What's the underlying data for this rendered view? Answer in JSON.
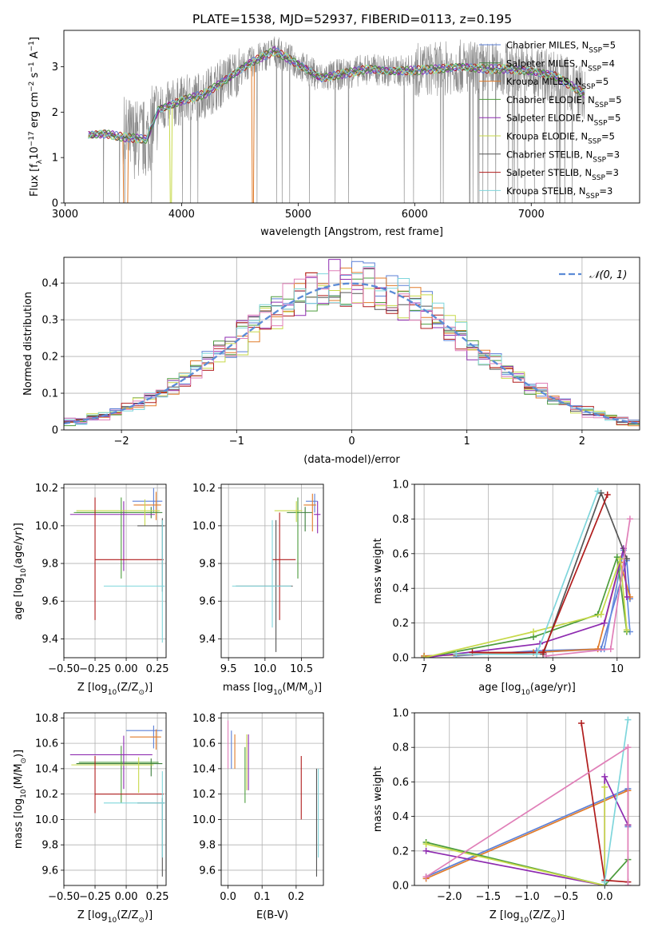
{
  "figure_title": "PLATE=1538, MJD=52937, FIBERID=0113, z=0.195",
  "legend_entries": [
    {
      "label": "Chabrier MILES, N",
      "sub": "SSP",
      "suffix": "=5",
      "color": "#5b7fd6"
    },
    {
      "label": "Salpeter MILES, N",
      "sub": "SSP",
      "suffix": "=4",
      "color": "#3a7d3a"
    },
    {
      "label": "Kroupa MILES, N",
      "sub": "SSP",
      "suffix": "=5",
      "color": "#e07b2a"
    },
    {
      "label": "Chabrier ELODIE, N",
      "sub": "SSP",
      "suffix": "=5",
      "color": "#4c9c3c"
    },
    {
      "label": "Salpeter ELODIE, N",
      "sub": "SSP",
      "suffix": "=5",
      "color": "#8e2bb0"
    },
    {
      "label": "Kroupa ELODIE, N",
      "sub": "SSP",
      "suffix": "=5",
      "color": "#c7d94a"
    },
    {
      "label": "Chabrier STELIB, N",
      "sub": "SSP",
      "suffix": "=3",
      "color": "#555555"
    },
    {
      "label": "Salpeter STELIB, N",
      "sub": "SSP",
      "suffix": "=3",
      "color": "#b01c1c"
    },
    {
      "label": "Kroupa STELIB, N",
      "sub": "SSP",
      "suffix": "=3",
      "color": "#7fd6dc"
    }
  ],
  "extra_colors": {
    "pink": "#e07fb8",
    "gray": "#7f7f7f",
    "normal": "#5b8bd6"
  },
  "chart_data": [
    {
      "id": "spectrum",
      "type": "line",
      "xlabel": "wavelength [Angstrom, rest frame]",
      "ylabel_main": "Flux [f",
      "ylabel_sub": "λ",
      "ylabel_rest": "10",
      "ylabel_exp1": "−17",
      "ylabel_mid": " erg cm",
      "ylabel_exp2": "−2",
      "ylabel_mid2": " s",
      "ylabel_exp3": "−1",
      "ylabel_end": " A",
      "ylabel_exp4": "−1",
      "ylabel_close": "]",
      "xlim": [
        2990,
        7930
      ],
      "ylim": [
        0,
        3.8
      ],
      "xticks": [
        3000,
        4000,
        5000,
        6000,
        7000
      ],
      "yticks": [
        0,
        1,
        2,
        3
      ],
      "x_range": [
        3200,
        7460
      ],
      "data_anchors": {
        "x": [
          3200,
          3350,
          3500,
          3700,
          3800,
          3900,
          4000,
          4200,
          4400,
          4600,
          4800,
          5000,
          5200,
          5400,
          5600,
          5800,
          6000,
          6200,
          6400,
          6600,
          6800,
          7000,
          7200,
          7460
        ],
        "y": [
          1.5,
          1.52,
          1.45,
          1.4,
          2.05,
          2.15,
          2.25,
          2.4,
          2.75,
          3.1,
          3.35,
          3.05,
          2.75,
          2.85,
          2.95,
          2.9,
          2.92,
          2.95,
          3.0,
          2.95,
          2.95,
          2.9,
          2.8,
          2.4
        ]
      }
    },
    {
      "id": "residuals",
      "type": "histogram",
      "xlabel": "(data-model)/error",
      "ylabel": "Normed distribution",
      "xlim": [
        -2.5,
        2.5
      ],
      "ylim": [
        0,
        0.47
      ],
      "xticks": [
        -2,
        -1,
        0,
        1,
        2
      ],
      "yticks": [
        0,
        0.1,
        0.2,
        0.3,
        0.4
      ],
      "bin_width": 0.1,
      "legend_label": "𝒩(0, 1)",
      "approx_shape": "standard normal, peak ≈ 0.40 at 0"
    },
    {
      "id": "age_vs_Z",
      "type": "errorbar",
      "xlabel_main": "Z [log",
      "xlabel_sub": "10",
      "xlabel_rest": "(Z/Z",
      "xlabel_sun": "⊙",
      "xlabel_close": ")]",
      "ylabel_main": "age  [log",
      "ylabel_sub": "10",
      "ylabel_rest": "(age/yr)]",
      "xlim": [
        -0.5,
        0.32
      ],
      "ylim": [
        9.3,
        10.22
      ],
      "xticks": [
        -0.5,
        -0.25,
        0.0,
        0.25
      ],
      "xtick_labels": [
        "−0.50",
        "−0.25",
        "0.00",
        "0.25"
      ],
      "yticks": [
        9.4,
        9.6,
        9.8,
        10.0,
        10.2
      ],
      "ytick_labels": [
        "9.4",
        "9.6",
        "9.8",
        "10.0",
        "10.2"
      ],
      "points": [
        {
          "x": 0.22,
          "xerr": [
            0.17,
            0.07
          ],
          "y": 10.13,
          "yerr": [
            0.06,
            0.07
          ],
          "c": 0
        },
        {
          "x": 0.2,
          "xerr": [
            0.6,
            0.09
          ],
          "y": 10.07,
          "yerr": [
            0.03,
            0.03
          ],
          "c": 1
        },
        {
          "x": 0.24,
          "xerr": [
            0.18,
            0.04
          ],
          "y": 10.11,
          "yerr": [
            0.08,
            0.07
          ],
          "c": 2
        },
        {
          "x": -0.04,
          "xerr": [
            0.38,
            0.3
          ],
          "y": 10.07,
          "yerr": [
            0.35,
            0.08
          ],
          "c": 3
        },
        {
          "x": -0.02,
          "xerr": [
            0.43,
            0.25
          ],
          "y": 10.06,
          "yerr": [
            0.3,
            0.07
          ],
          "c": 4
        },
        {
          "x": 0.15,
          "xerr": [
            0.55,
            0.12
          ],
          "y": 10.08,
          "yerr": [
            0.08,
            0.06
          ],
          "c": 5
        },
        {
          "x": 0.29,
          "xerr": [
            0.2,
            0.02
          ],
          "y": 10.0,
          "yerr": [
            0.35,
            0.04
          ],
          "c": 6
        },
        {
          "x": -0.25,
          "xerr": [
            0.0,
            0.55
          ],
          "y": 9.82,
          "yerr": [
            0.32,
            0.33
          ],
          "c": 7
        },
        {
          "x": 0.29,
          "xerr": [
            0.47,
            0.02
          ],
          "y": 9.68,
          "yerr": [
            0.3,
            0.35
          ],
          "c": 8
        }
      ]
    },
    {
      "id": "age_vs_mass",
      "type": "errorbar",
      "xlabel_main": "mass [log",
      "xlabel_sub": "10",
      "xlabel_rest": "(M/M",
      "xlabel_sun": "⊙",
      "xlabel_close": ")]",
      "xlim": [
        9.4,
        10.8
      ],
      "ylim": [
        9.3,
        10.22
      ],
      "xticks": [
        9.5,
        10.0,
        10.5
      ],
      "xtick_labels": [
        "9.5",
        "10.0",
        "10.5"
      ],
      "yticks": [
        9.4,
        9.6,
        9.8,
        10.0,
        10.2
      ],
      "ytick_labels": [
        "9.4",
        "9.6",
        "9.8",
        "10.0",
        "10.2"
      ],
      "points": [
        {
          "x": 10.68,
          "xerr": [
            0.12,
            0.04
          ],
          "y": 10.13,
          "yerr": [
            0.06,
            0.04
          ],
          "c": 0
        },
        {
          "x": 10.55,
          "xerr": [
            0.25,
            0.1
          ],
          "y": 10.07,
          "yerr": [
            0.1,
            0.03
          ],
          "c": 1
        },
        {
          "x": 10.65,
          "xerr": [
            0.12,
            0.05
          ],
          "y": 10.11,
          "yerr": [
            0.14,
            0.06
          ],
          "c": 2
        },
        {
          "x": 10.45,
          "xerr": [
            0.05,
            0.03
          ],
          "y": 10.07,
          "yerr": [
            0.35,
            0.08
          ],
          "c": 3
        },
        {
          "x": 10.72,
          "xerr": [
            0.05,
            0.04
          ],
          "y": 10.06,
          "yerr": [
            0.1,
            0.07
          ],
          "c": 4
        },
        {
          "x": 10.43,
          "xerr": [
            0.3,
            0.08
          ],
          "y": 10.08,
          "yerr": [
            0.06,
            0.05
          ],
          "c": 5
        },
        {
          "x": 10.15,
          "xerr": [
            0.55,
            0.23
          ],
          "y": 9.68,
          "yerr": [
            0.35,
            0.35
          ],
          "c": 6
        },
        {
          "x": 10.2,
          "xerr": [
            0.1,
            0.22
          ],
          "y": 9.82,
          "yerr": [
            0.32,
            0.25
          ],
          "c": 7
        },
        {
          "x": 10.1,
          "xerr": [
            0.55,
            0.26
          ],
          "y": 9.68,
          "yerr": [
            0.22,
            0.35
          ],
          "c": 8
        }
      ]
    },
    {
      "id": "weight_vs_age",
      "type": "line",
      "xlabel_main": "age  [log",
      "xlabel_sub": "10",
      "xlabel_rest": "(age/yr)]",
      "ylabel": "mass weight",
      "xlim": [
        6.85,
        10.35
      ],
      "ylim": [
        0,
        1.0
      ],
      "xticks": [
        7,
        8,
        9,
        10
      ],
      "yticks": [
        0.0,
        0.2,
        0.4,
        0.6,
        0.8,
        1.0
      ],
      "ytick_labels": [
        "0.0",
        "0.2",
        "0.4",
        "0.6",
        "0.8",
        "1.0"
      ],
      "series": [
        {
          "c": 0,
          "x": [
            7.5,
            8.75,
            9.75,
            10.15,
            10.2
          ],
          "y": [
            0.01,
            0.04,
            0.05,
            0.56,
            0.34
          ]
        },
        {
          "c": 9,
          "x": [
            7.0,
            8.7,
            9.8,
            10.1,
            10.2
          ],
          "y": [
            0.01,
            0.03,
            0.05,
            0.62,
            0.15
          ]
        },
        {
          "c": 2,
          "x": [
            7.0,
            8.7,
            9.7,
            10.05,
            10.2
          ],
          "y": [
            0.01,
            0.03,
            0.05,
            0.55,
            0.35
          ]
        },
        {
          "c": 3,
          "x": [
            7.0,
            8.7,
            9.7,
            10.0,
            10.15
          ],
          "y": [
            0.0,
            0.12,
            0.25,
            0.58,
            0.15
          ]
        },
        {
          "c": 4,
          "x": [
            7.0,
            8.8,
            9.8,
            10.1,
            10.15
          ],
          "y": [
            0.0,
            0.08,
            0.2,
            0.63,
            0.35
          ]
        },
        {
          "c": 5,
          "x": [
            7.0,
            8.7,
            9.75,
            10.05,
            10.15
          ],
          "y": [
            0.0,
            0.15,
            0.25,
            0.57,
            0.16
          ]
        },
        {
          "c": 6,
          "x": [
            8.85,
            9.75,
            10.15
          ],
          "y": [
            0.02,
            0.95,
            0.57
          ]
        },
        {
          "c": 7,
          "x": [
            7.75,
            8.85,
            9.85
          ],
          "y": [
            0.03,
            0.03,
            0.94
          ]
        },
        {
          "c": 8,
          "x": [
            7.5,
            8.75,
            9.7
          ],
          "y": [
            0.02,
            0.02,
            0.96
          ]
        },
        {
          "c": 10,
          "x": [
            8.9,
            9.9,
            10.2
          ],
          "y": [
            0.01,
            0.05,
            0.8
          ]
        }
      ]
    },
    {
      "id": "mass_vs_Z",
      "type": "errorbar",
      "xlabel_main": "Z [log",
      "xlabel_sub": "10",
      "xlabel_rest": "(Z/Z",
      "xlabel_sun": "⊙",
      "xlabel_close": ")]",
      "ylabel_main": "mass [log",
      "ylabel_sub": "10",
      "ylabel_rest": "(M/M",
      "ylabel_sun": "⊙",
      "ylabel_close": ")]",
      "xlim": [
        -0.5,
        0.32
      ],
      "ylim": [
        9.48,
        10.84
      ],
      "xticks": [
        -0.5,
        -0.25,
        0.0,
        0.25
      ],
      "xtick_labels": [
        "−0.50",
        "−0.25",
        "0.00",
        "0.25"
      ],
      "yticks": [
        9.6,
        9.8,
        10.0,
        10.2,
        10.4,
        10.6,
        10.8
      ],
      "ytick_labels": [
        "9.6",
        "9.8",
        "10.0",
        "10.2",
        "10.4",
        "10.6",
        "10.8"
      ],
      "points": [
        {
          "x": 0.22,
          "xerr": [
            0.22,
            0.07
          ],
          "y": 10.7,
          "yerr": [
            0.14,
            0.04
          ],
          "c": 0
        },
        {
          "x": 0.2,
          "xerr": [
            0.6,
            0.09
          ],
          "y": 10.44,
          "yerr": [
            0.1,
            0.04
          ],
          "c": 1
        },
        {
          "x": 0.24,
          "xerr": [
            0.21,
            0.04
          ],
          "y": 10.65,
          "yerr": [
            0.1,
            0.06
          ],
          "c": 2
        },
        {
          "x": -0.04,
          "xerr": [
            0.34,
            0.3
          ],
          "y": 10.45,
          "yerr": [
            0.32,
            0.13
          ],
          "c": 3
        },
        {
          "x": -0.02,
          "xerr": [
            0.43,
            0.23
          ],
          "y": 10.51,
          "yerr": [
            0.27,
            0.15
          ],
          "c": 4
        },
        {
          "x": 0.1,
          "xerr": [
            0.54,
            0.12
          ],
          "y": 10.43,
          "yerr": [
            0.22,
            0.06
          ],
          "c": 5
        },
        {
          "x": 0.29,
          "xerr": [
            0.2,
            0.02
          ],
          "y": 10.13,
          "yerr": [
            0.58,
            0.04
          ],
          "c": 6
        },
        {
          "x": -0.25,
          "xerr": [
            0.0,
            0.55
          ],
          "y": 10.2,
          "yerr": [
            0.15,
            0.3
          ],
          "c": 7
        },
        {
          "x": 0.29,
          "xerr": [
            0.47,
            0.02
          ],
          "y": 10.13,
          "yerr": [
            0.43,
            0.25
          ],
          "c": 8
        }
      ]
    },
    {
      "id": "mass_vs_ebv",
      "type": "errorbar",
      "xlabel": "E(B-V)",
      "xlim": [
        -0.02,
        0.28
      ],
      "ylim": [
        9.48,
        10.84
      ],
      "xticks": [
        0.0,
        0.1,
        0.2
      ],
      "xtick_labels": [
        "0.0",
        "0.1",
        "0.2"
      ],
      "yticks": [
        9.6,
        9.8,
        10.0,
        10.2,
        10.4,
        10.6,
        10.8
      ],
      "ytick_labels": [
        "9.6",
        "9.8",
        "10.0",
        "10.2",
        "10.4",
        "10.6",
        "10.8"
      ],
      "points": [
        {
          "x": 0.0,
          "y": 10.7,
          "yerr": [
            0.3,
            0.08
          ],
          "c": 10
        },
        {
          "x": 0.01,
          "y": 10.55,
          "yerr": [
            0.15,
            0.15
          ],
          "c": 0
        },
        {
          "x": 0.02,
          "y": 10.55,
          "yerr": [
            0.15,
            0.12
          ],
          "c": 2
        },
        {
          "x": 0.05,
          "y": 10.35,
          "yerr": [
            0.22,
            0.22
          ],
          "c": 3
        },
        {
          "x": 0.055,
          "y": 10.45,
          "yerr": [
            0.22,
            0.22
          ],
          "c": 5
        },
        {
          "x": 0.06,
          "y": 10.45,
          "yerr": [
            0.22,
            0.22
          ],
          "c": 4
        },
        {
          "x": 0.215,
          "y": 10.25,
          "yerr": [
            0.25,
            0.25
          ],
          "c": 7
        },
        {
          "x": 0.26,
          "y": 10.0,
          "yerr": [
            0.45,
            0.4
          ],
          "c": 6
        },
        {
          "x": 0.265,
          "y": 10.05,
          "yerr": [
            0.35,
            0.35
          ],
          "c": 8
        }
      ]
    },
    {
      "id": "weight_vs_Z",
      "type": "line",
      "xlabel_main": "Z [log",
      "xlabel_sub": "10",
      "xlabel_rest": "(Z/Z",
      "xlabel_sun": "⊙",
      "xlabel_close": ")]",
      "ylabel": "mass weight",
      "xlim": [
        -2.45,
        0.45
      ],
      "ylim": [
        0,
        1.0
      ],
      "xticks": [
        -2.0,
        -1.5,
        -1.0,
        -0.5,
        0.0
      ],
      "xtick_labels": [
        "−2.0",
        "−1.5",
        "−1.0",
        "−0.5",
        "0.0"
      ],
      "yticks": [
        0.0,
        0.2,
        0.4,
        0.6,
        0.8,
        1.0
      ],
      "ytick_labels": [
        "0.0",
        "0.2",
        "0.4",
        "0.6",
        "0.8",
        "1.0"
      ],
      "series": [
        {
          "c": 0,
          "x": [
            -2.3,
            0.3,
            0.3
          ],
          "y": [
            0.05,
            0.56,
            0.34
          ]
        },
        {
          "c": 2,
          "x": [
            -2.3,
            0.3,
            0.3
          ],
          "y": [
            0.04,
            0.55,
            0.35
          ]
        },
        {
          "c": 3,
          "x": [
            -2.3,
            0.0,
            0.3
          ],
          "y": [
            0.25,
            0.0,
            0.15
          ]
        },
        {
          "c": 4,
          "x": [
            -2.3,
            0.0,
            0.0,
            0.3
          ],
          "y": [
            0.2,
            0.0,
            0.63,
            0.35
          ]
        },
        {
          "c": 5,
          "x": [
            -2.3,
            0.0,
            0.0
          ],
          "y": [
            0.24,
            0.0,
            0.57
          ]
        },
        {
          "c": 7,
          "x": [
            -0.3,
            0.0,
            0.3
          ],
          "y": [
            0.94,
            0.03,
            0.02
          ]
        },
        {
          "c": 8,
          "x": [
            0.0,
            0.3
          ],
          "y": [
            0.02,
            0.96
          ]
        },
        {
          "c": 10,
          "x": [
            -2.3,
            0.3,
            0.3
          ],
          "y": [
            0.05,
            0.8,
            0.0
          ]
        }
      ]
    }
  ]
}
